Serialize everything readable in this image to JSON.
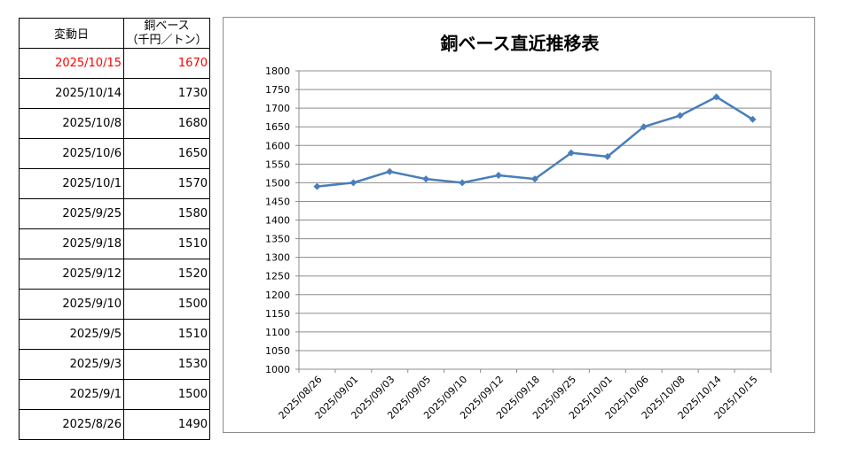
{
  "table": {
    "headers": {
      "date": "変動日",
      "price_line1": "銅ベース",
      "price_line2": "（千円／トン）"
    },
    "rows": [
      {
        "date": "2025/10/15",
        "price": "1670",
        "highlight": true
      },
      {
        "date": "2025/10/14",
        "price": "1730",
        "highlight": false
      },
      {
        "date": "2025/10/8",
        "price": "1680",
        "highlight": false
      },
      {
        "date": "2025/10/6",
        "price": "1650",
        "highlight": false
      },
      {
        "date": "2025/10/1",
        "price": "1570",
        "highlight": false
      },
      {
        "date": "2025/9/25",
        "price": "1580",
        "highlight": false
      },
      {
        "date": "2025/9/18",
        "price": "1510",
        "highlight": false
      },
      {
        "date": "2025/9/12",
        "price": "1520",
        "highlight": false
      },
      {
        "date": "2025/9/10",
        "price": "1500",
        "highlight": false
      },
      {
        "date": "2025/9/5",
        "price": "1510",
        "highlight": false
      },
      {
        "date": "2025/9/3",
        "price": "1530",
        "highlight": false
      },
      {
        "date": "2025/9/1",
        "price": "1500",
        "highlight": false
      },
      {
        "date": "2025/8/26",
        "price": "1490",
        "highlight": false
      }
    ],
    "highlight_color": "#ff0000"
  },
  "chart_data": {
    "type": "line",
    "title": "銅ベース直近推移表",
    "categories": [
      "2025/08/26",
      "2025/09/01",
      "2025/09/03",
      "2025/09/05",
      "2025/09/10",
      "2025/09/12",
      "2025/09/18",
      "2025/09/25",
      "2025/10/01",
      "2025/10/06",
      "2025/10/08",
      "2025/10/14",
      "2025/10/15"
    ],
    "series": [
      {
        "values": [
          1490,
          1500,
          1530,
          1510,
          1500,
          1520,
          1510,
          1580,
          1570,
          1650,
          1680,
          1730,
          1670
        ],
        "color": "#4a7ebb",
        "marker": "diamond"
      }
    ],
    "xlabel": "",
    "ylabel": "",
    "ylim": [
      1000,
      1800
    ],
    "yticks": [
      1000,
      1050,
      1100,
      1150,
      1200,
      1250,
      1300,
      1350,
      1400,
      1450,
      1500,
      1550,
      1600,
      1650,
      1700,
      1750,
      1800
    ],
    "grid": true,
    "legend": "none"
  }
}
